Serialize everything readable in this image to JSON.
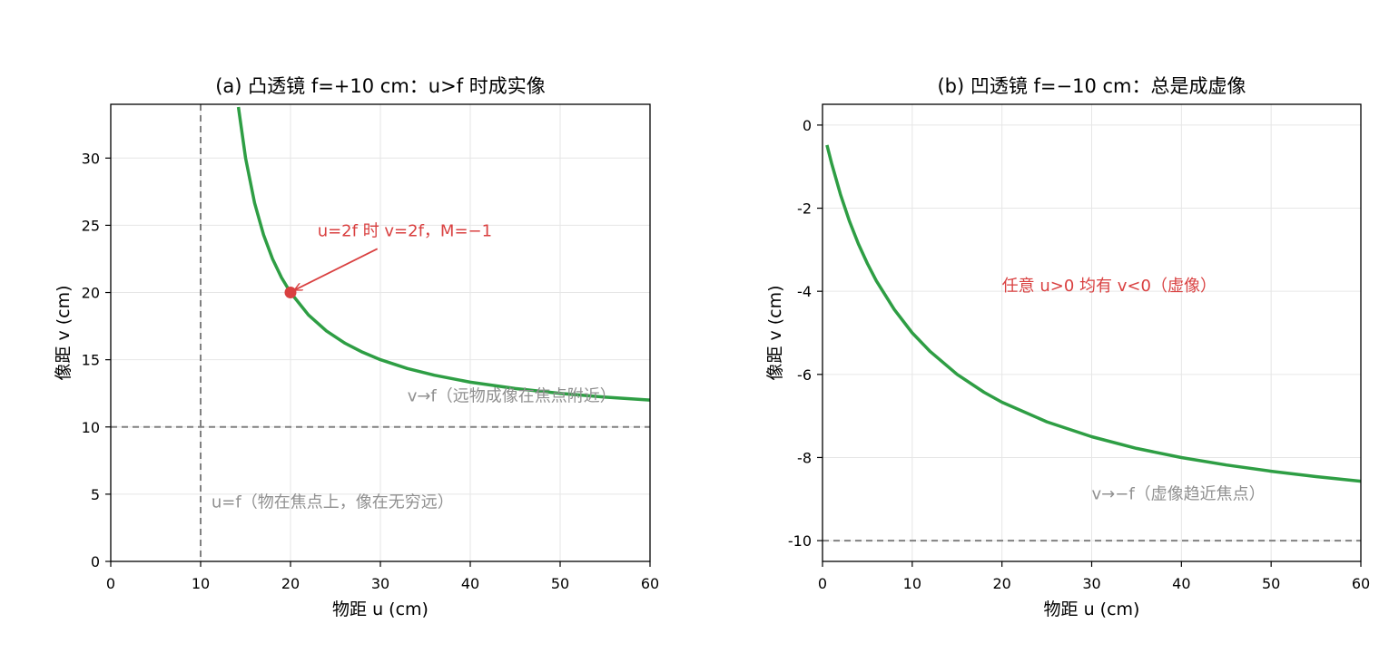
{
  "chart_data": [
    {
      "type": "line",
      "title": "(a) 凸透镜 f=+10 cm：u>f 时成实像",
      "xlabel": "物距 u (cm)",
      "ylabel": "像距 v (cm)",
      "xlim": [
        0,
        60
      ],
      "ylim": [
        0,
        34
      ],
      "xticks": [
        0,
        10,
        20,
        30,
        40,
        50,
        60
      ],
      "yticks": [
        0,
        5,
        10,
        15,
        20,
        25,
        30
      ],
      "grid": true,
      "line_color": "#2e9e44",
      "series": [
        {
          "x": [
            14.2,
            15,
            16,
            17,
            18,
            19,
            20,
            22,
            24,
            26,
            28,
            30,
            33,
            36,
            40,
            45,
            50,
            55,
            60
          ],
          "y": [
            33.8,
            30.0,
            26.67,
            24.29,
            22.5,
            21.11,
            20.0,
            18.33,
            17.14,
            16.25,
            15.56,
            15.0,
            14.35,
            13.85,
            13.33,
            12.86,
            12.5,
            12.22,
            12.0
          ]
        }
      ],
      "reference_lines": [
        {
          "orientation": "vertical",
          "value": 10,
          "color": "#808080",
          "style": "dashed"
        },
        {
          "orientation": "horizontal",
          "value": 10,
          "color": "#808080",
          "style": "dashed"
        }
      ],
      "marker": {
        "x": 20,
        "y": 20,
        "color": "#d94040"
      },
      "annotations": [
        {
          "text": "u=2f 时 v=2f，M=−1",
          "color": "#d94040",
          "x": 23,
          "y": 24.2,
          "arrow_to": [
            20,
            20
          ]
        },
        {
          "text": "v→f（远物成像在焦点附近）",
          "color": "#909090",
          "x": 33,
          "y": 11.9
        },
        {
          "text": "u=f（物在焦点上，像在无穷远）",
          "color": "#909090",
          "x": 11.2,
          "y": 4
        }
      ]
    },
    {
      "type": "line",
      "title": "(b) 凹透镜 f=−10 cm：总是成虚像",
      "xlabel": "物距 u (cm)",
      "ylabel": "像距 v (cm)",
      "xlim": [
        0,
        60
      ],
      "ylim": [
        -10.5,
        0.5
      ],
      "xticks": [
        0,
        10,
        20,
        30,
        40,
        50,
        60
      ],
      "yticks": [
        0,
        -2,
        -4,
        -6,
        -8,
        -10
      ],
      "ytick_labels": [
        "0",
        "-2",
        "-4",
        "-6",
        "-8",
        "-10"
      ],
      "grid": true,
      "line_color": "#2e9e44",
      "series": [
        {
          "x": [
            0.5,
            1,
            2,
            3,
            4,
            5,
            6,
            8,
            10,
            12,
            15,
            18,
            20,
            25,
            30,
            35,
            40,
            45,
            50,
            55,
            60
          ],
          "y": [
            -0.48,
            -0.91,
            -1.67,
            -2.31,
            -2.86,
            -3.33,
            -3.75,
            -4.44,
            -5.0,
            -5.45,
            -6.0,
            -6.43,
            -6.67,
            -7.14,
            -7.5,
            -7.78,
            -8.0,
            -8.18,
            -8.33,
            -8.46,
            -8.57
          ]
        }
      ],
      "reference_lines": [
        {
          "orientation": "horizontal",
          "value": -10,
          "color": "#808080",
          "style": "dashed"
        }
      ],
      "annotations": [
        {
          "text": "任意 u>0 均有 v<0（虚像）",
          "color": "#d94040",
          "x": 20,
          "y": -4
        },
        {
          "text": "v→−f（虚像趋近焦点）",
          "color": "#909090",
          "x": 30,
          "y": -9
        }
      ]
    }
  ]
}
